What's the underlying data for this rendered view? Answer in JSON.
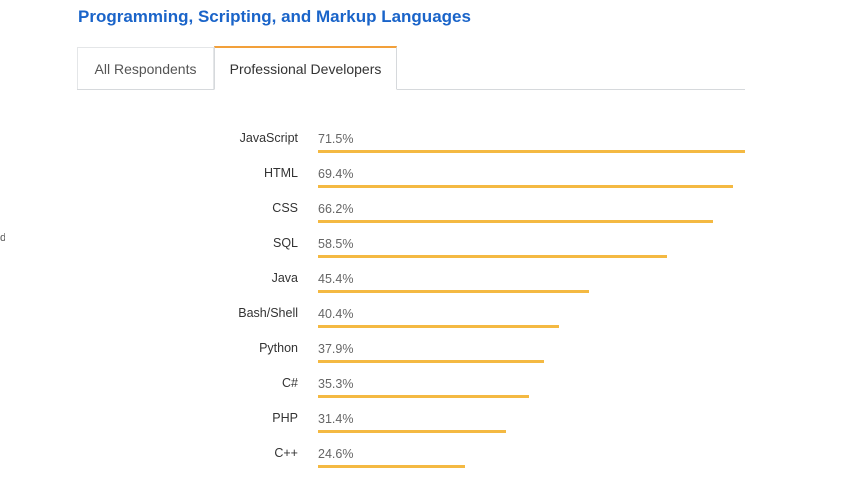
{
  "header": {
    "title": "Programming, Scripting, and Markup Languages"
  },
  "edge_fragment": "d",
  "tabs": [
    {
      "label": "All Respondents",
      "active": false
    },
    {
      "label": "Professional Developers",
      "active": true
    }
  ],
  "colors": {
    "accent": "#f4b942",
    "title": "#1a64c9"
  },
  "chart_data": {
    "type": "bar",
    "orientation": "horizontal",
    "categories": [
      "JavaScript",
      "HTML",
      "CSS",
      "SQL",
      "Java",
      "Bash/Shell",
      "Python",
      "C#",
      "PHP",
      "C++"
    ],
    "values": [
      71.5,
      69.4,
      66.2,
      58.5,
      45.4,
      40.4,
      37.9,
      35.3,
      31.4,
      24.6
    ],
    "value_labels": [
      "71.5%",
      "69.4%",
      "66.2%",
      "58.5%",
      "45.4%",
      "40.4%",
      "37.9%",
      "35.3%",
      "31.4%",
      "24.6%"
    ],
    "unit": "%",
    "xlim": [
      0,
      71.5
    ],
    "grid": false
  }
}
